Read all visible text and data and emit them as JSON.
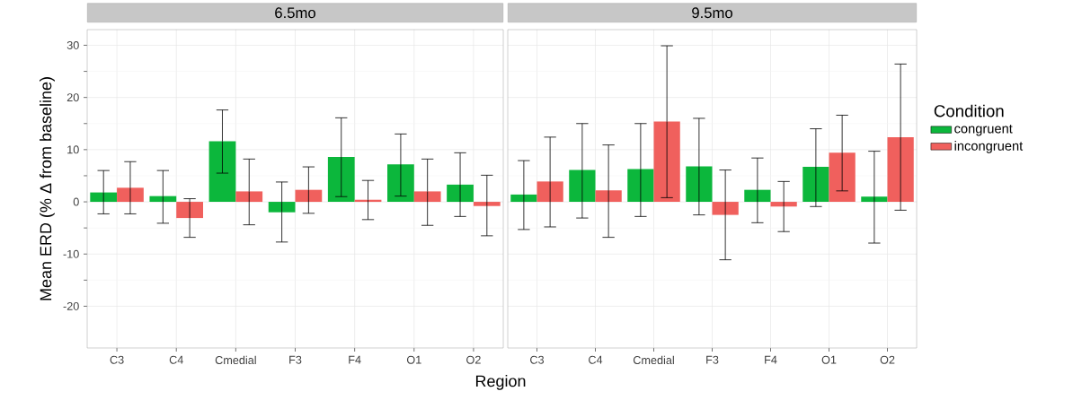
{
  "chart_data": [
    {
      "type": "bar",
      "title": "6.5mo",
      "xlabel": "Region",
      "ylabel": "Mean ERD (% Δ from baseline)",
      "categories": [
        "C3",
        "C4",
        "Cmedial",
        "F3",
        "F4",
        "O1",
        "O2"
      ],
      "ylim": [
        -28,
        33
      ],
      "yticks": [
        -20,
        -10,
        0,
        10,
        20,
        30
      ],
      "grid": true,
      "series": [
        {
          "color": "#0cb73c",
          "values": [
            1.8,
            1.1,
            11.6,
            -2.0,
            8.6,
            7.2,
            3.3
          ],
          "errors": [
            [
              -2.3,
              6.0
            ],
            [
              -4.1,
              6.0
            ],
            [
              5.5,
              17.6
            ],
            [
              -7.7,
              3.8
            ],
            [
              1.0,
              16.1
            ],
            [
              1.1,
              13.0
            ],
            [
              -2.8,
              9.4
            ]
          ]
        },
        {
          "color": "#f0605d",
          "values": [
            2.7,
            -3.1,
            2.0,
            2.3,
            0.4,
            2.0,
            -0.8
          ],
          "errors": [
            [
              -2.3,
              7.7
            ],
            [
              -6.8,
              0.6
            ],
            [
              -4.4,
              8.2
            ],
            [
              -2.2,
              6.7
            ],
            [
              -3.4,
              4.1
            ],
            [
              -4.5,
              8.2
            ],
            [
              -6.5,
              5.1
            ]
          ]
        }
      ]
    },
    {
      "type": "bar",
      "title": "9.5mo",
      "legend_title": "Condition",
      "legend": "right",
      "tick_labels": "x",
      "categories": [
        "C3",
        "C4",
        "Cmedial",
        "F3",
        "F4",
        "O1",
        "O2"
      ],
      "ylim": [
        -28,
        33
      ],
      "yticks": [
        -20,
        -10,
        0,
        10,
        20,
        30
      ],
      "grid": true,
      "series": [
        {
          "name": "congruent",
          "color": "#0cb73c",
          "values": [
            1.4,
            6.1,
            6.3,
            6.8,
            2.3,
            6.7,
            1.0
          ],
          "errors": [
            [
              -5.3,
              7.9
            ],
            [
              -3.1,
              15.0
            ],
            [
              -2.8,
              15.0
            ],
            [
              -2.5,
              16.0
            ],
            [
              -4.0,
              8.4
            ],
            [
              -0.9,
              14.0
            ],
            [
              -7.9,
              9.7
            ]
          ]
        },
        {
          "name": "incongruent",
          "color": "#f0605d",
          "values": [
            3.9,
            2.2,
            15.4,
            -2.5,
            -0.9,
            9.4,
            12.4
          ],
          "errors": [
            [
              -4.8,
              12.4
            ],
            [
              -6.8,
              10.9
            ],
            [
              0.8,
              29.9
            ],
            [
              -11.1,
              6.1
            ],
            [
              -5.7,
              3.9
            ],
            [
              2.1,
              16.6
            ],
            [
              -1.6,
              26.4
            ]
          ]
        }
      ]
    }
  ]
}
